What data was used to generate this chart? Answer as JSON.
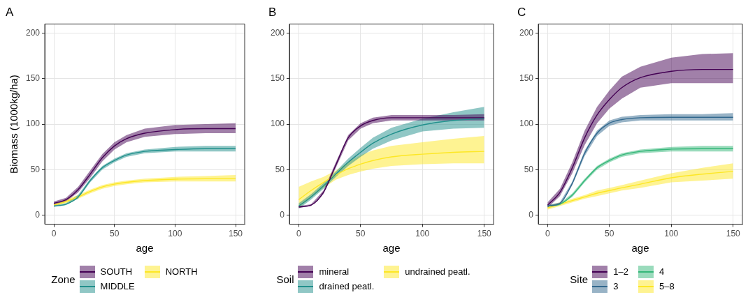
{
  "chart_data": [
    {
      "type": "line",
      "title": "A",
      "xlabel": "age",
      "ylabel": "Biomass (1000kg/ha)",
      "legend_title": "Zone",
      "legend": "bottom",
      "grid": true,
      "marker": "none",
      "line_style": "solid",
      "xlim": [
        -7.5,
        157.5
      ],
      "ylim": [
        -10,
        210
      ],
      "xticks": [
        0,
        50,
        100,
        150
      ],
      "yticks": [
        0,
        50,
        100,
        150,
        200
      ],
      "x": [
        0,
        10,
        20,
        30,
        40,
        50,
        60,
        75,
        100,
        125,
        150
      ],
      "series": [
        {
          "name": "SOUTH",
          "color": "#440154",
          "values": [
            13,
            17,
            28,
            45,
            63,
            76,
            84,
            90,
            94,
            95,
            95
          ],
          "lower": [
            11,
            15,
            25,
            41,
            59,
            72,
            80,
            86,
            89,
            90,
            90
          ],
          "upper": [
            15,
            19,
            31,
            49,
            67,
            80,
            88,
            95,
            99,
            100,
            101
          ]
        },
        {
          "name": "MIDDLE",
          "color": "#21908c",
          "values": [
            10,
            12,
            20,
            38,
            52,
            60,
            66,
            70,
            72,
            73,
            73
          ],
          "lower": [
            9,
            11,
            18,
            36,
            50,
            58,
            64,
            68,
            70,
            70,
            70
          ],
          "upper": [
            11,
            13,
            22,
            40,
            54,
            62,
            68,
            72,
            75,
            76,
            76
          ]
        },
        {
          "name": "NORTH",
          "color": "#fde725",
          "values": [
            11,
            15,
            20,
            26,
            31,
            34,
            36,
            38,
            39.5,
            40,
            40
          ],
          "lower": [
            10,
            13,
            18,
            24,
            29,
            32,
            34,
            36,
            37,
            37,
            37
          ],
          "upper": [
            12,
            17,
            22,
            28,
            33,
            36,
            38,
            40,
            42,
            43,
            44
          ]
        }
      ]
    },
    {
      "type": "line",
      "title": "B",
      "xlabel": "age",
      "legend_title": "Soil",
      "legend": "bottom",
      "grid": true,
      "marker": "none",
      "line_style": "solid",
      "xlim": [
        -7.5,
        157.5
      ],
      "ylim": [
        -10,
        210
      ],
      "xticks": [
        0,
        50,
        100,
        150
      ],
      "yticks": [
        0,
        50,
        100,
        150,
        200
      ],
      "x": [
        0,
        10,
        20,
        30,
        40,
        50,
        60,
        75,
        100,
        125,
        150
      ],
      "series": [
        {
          "name": "mineral",
          "color": "#440154",
          "values": [
            9,
            11,
            25,
            55,
            85,
            98,
            104,
            107,
            107,
            107,
            107
          ],
          "lower": [
            8,
            10,
            23,
            52,
            82,
            95,
            101,
            104,
            104,
            104,
            104
          ],
          "upper": [
            10,
            12,
            27,
            58,
            88,
            101,
            107,
            110,
            110,
            110,
            111
          ]
        },
        {
          "name": "drained peatl.",
          "color": "#21908c",
          "values": [
            10,
            20,
            32,
            45,
            58,
            69,
            79,
            89,
            99,
            104,
            106
          ],
          "lower": [
            7,
            17,
            29,
            42,
            54,
            64,
            73,
            82,
            92,
            95,
            96
          ],
          "upper": [
            13,
            23,
            35,
            48,
            62,
            74,
            85,
            96,
            106,
            113,
            119
          ]
        },
        {
          "name": "undrained peatl.",
          "color": "#fde725",
          "values": [
            17,
            27,
            36,
            44,
            51,
            56,
            60,
            64,
            67,
            69,
            70
          ],
          "lower": [
            8,
            19,
            30,
            39,
            44,
            48,
            51,
            54,
            56,
            57,
            57
          ],
          "upper": [
            31,
            37,
            42,
            49,
            58,
            66,
            71,
            76,
            80,
            84,
            87
          ]
        }
      ]
    },
    {
      "type": "line",
      "title": "C",
      "xlabel": "age",
      "legend_title": "Site",
      "legend": "bottom",
      "grid": true,
      "marker": "none",
      "line_style": "solid",
      "xlim": [
        -7.5,
        157.5
      ],
      "ylim": [
        -10,
        210
      ],
      "xticks": [
        0,
        50,
        100,
        150
      ],
      "yticks": [
        0,
        50,
        100,
        150,
        200
      ],
      "x": [
        0,
        10,
        20,
        30,
        40,
        50,
        60,
        75,
        100,
        125,
        150
      ],
      "series": [
        {
          "name": "1–2",
          "color": "#440154",
          "values": [
            11,
            25,
            52,
            85,
            110,
            127,
            140,
            151,
            158,
            160,
            160
          ],
          "lower": [
            8,
            21,
            46,
            77,
            101,
            117,
            128,
            140,
            145,
            145,
            145
          ],
          "upper": [
            14,
            29,
            58,
            93,
            119,
            137,
            152,
            163,
            173,
            177,
            178
          ]
        },
        {
          "name": "3",
          "color": "#31688e",
          "values": [
            10,
            13,
            35,
            68,
            90,
            101,
            105,
            107,
            107.5,
            107.5,
            107.5
          ],
          "lower": [
            9,
            12,
            33,
            65,
            87,
            98,
            102,
            104,
            104,
            104,
            104
          ],
          "upper": [
            11,
            14,
            37,
            71,
            93,
            104,
            108,
            110,
            111,
            111,
            112
          ]
        },
        {
          "name": "4",
          "color": "#35b779",
          "values": [
            10,
            12,
            22,
            38,
            52,
            60,
            66,
            70,
            72.5,
            73,
            73
          ],
          "lower": [
            9,
            11,
            20,
            36,
            50,
            58,
            64,
            68,
            70,
            70,
            70
          ],
          "upper": [
            11,
            13,
            24,
            40,
            54,
            62,
            68,
            72,
            75,
            76,
            76
          ]
        },
        {
          "name": "5–8",
          "color": "#fde725",
          "values": [
            8,
            12,
            16,
            20,
            24,
            27,
            30,
            34,
            41,
            45,
            48
          ],
          "lower": [
            6,
            10,
            14,
            18,
            21,
            24,
            27,
            30,
            36,
            38,
            40
          ],
          "upper": [
            10,
            14,
            18,
            22,
            27,
            30,
            33,
            38,
            46,
            52,
            57
          ]
        }
      ]
    }
  ]
}
